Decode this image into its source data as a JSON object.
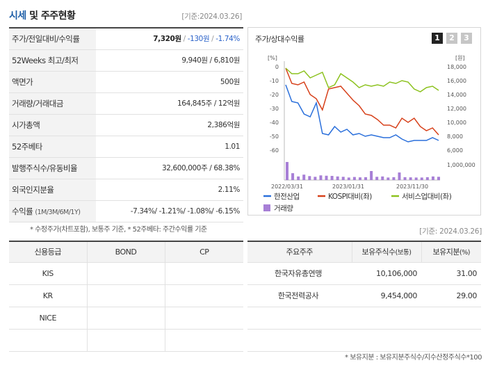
{
  "header": {
    "title_highlight": "시세",
    "title_rest": " 및 주주현황",
    "base_date": "[기준:2024.03.26]"
  },
  "price_table": {
    "rows": [
      {
        "label": "주가/전일대비/수익률",
        "value_main": "7,320원",
        "sep1": " / ",
        "value_change": "-130원",
        "sep2": " / ",
        "value_rate": "-1.74%"
      },
      {
        "label": "52Weeks 최고/최저",
        "value": "9,940원 / 6,810원"
      },
      {
        "label": "액면가",
        "value": "500원"
      },
      {
        "label": "거래량/거래대금",
        "value": "164,845주 / 12억원"
      },
      {
        "label": "시가총액",
        "value": "2,386억원"
      },
      {
        "label": "52주베타",
        "value": "1.01"
      },
      {
        "label": "발행주식수/유동비율",
        "value": "32,600,000주 / 68.38%"
      },
      {
        "label": "외국인지분율",
        "value": "2.11%"
      },
      {
        "label": "수익률",
        "label_small": "(1M/3M/6M/1Y)",
        "value": "-7.34%/ -1.21%/ -1.08%/ -6.15%"
      }
    ],
    "note": "* 수정주가(차트포함), 보통주 기준, * 52주베타: 주간수익률 기준"
  },
  "chart_panel": {
    "title": "주가/상대수익률",
    "tabs": [
      "1",
      "2",
      "3"
    ],
    "active_tab": "1"
  },
  "chart_data": {
    "type": "line",
    "left_axis_unit": "[%]",
    "right_axis_unit": "[원]",
    "left_ticks": [
      "0",
      "-10",
      "-20",
      "-30",
      "-40",
      "-50",
      "-60"
    ],
    "left_tick_values": [
      0,
      -10,
      -20,
      -30,
      -40,
      -50,
      -60
    ],
    "right_ticks": [
      "18,000",
      "16,000",
      "14,000",
      "12,000",
      "10,000",
      "8,000",
      "6,000"
    ],
    "right_tick_values": [
      18000,
      16000,
      14000,
      12000,
      10000,
      8000,
      6000
    ],
    "volume_tick": "1,000,000",
    "x_ticks": [
      "2022/03/31",
      "2023/01/31",
      "2023/11/30"
    ],
    "ylim_left": [
      -60,
      0
    ],
    "series": [
      {
        "name": "한전산업",
        "color": "#2a6fdb",
        "values": [
          -13,
          -25,
          -26,
          -34,
          -36,
          -26,
          -48,
          -49,
          -43,
          -47,
          -45,
          -49,
          -48,
          -50,
          -49,
          -50,
          -51,
          -51,
          -49,
          -52,
          -54,
          -53,
          -53,
          -53,
          -51,
          -53
        ]
      },
      {
        "name": "KOSPI대비(좌)",
        "color": "#d7411b",
        "values": [
          -1,
          -12,
          -13,
          -11,
          -20,
          -23,
          -31,
          -16,
          -15,
          -14,
          -19,
          -24,
          -28,
          -34,
          -35,
          -38,
          -42,
          -42,
          -44,
          -37,
          -40,
          -37,
          -43,
          -46,
          -44,
          -49
        ]
      },
      {
        "name": "서비스업대비(좌)",
        "color": "#8cc21e",
        "values": [
          -1,
          -5,
          -5,
          -3,
          -8,
          -6,
          -4,
          -15,
          -13,
          -5,
          -8,
          -11,
          -15,
          -13,
          -14,
          -13,
          -14,
          -11,
          -12,
          -10,
          -11,
          -16,
          -18,
          -15,
          -14,
          -17
        ]
      }
    ],
    "volume": {
      "name": "거래량",
      "color": "#a77fd6",
      "values": [
        1000000,
        380000,
        200000,
        300000,
        220000,
        180000,
        260000,
        240000,
        230000,
        200000,
        180000,
        140000,
        170000,
        150000,
        160000,
        500000,
        180000,
        200000,
        140000,
        160000,
        420000,
        160000,
        150000,
        140000,
        140000,
        160000,
        200000,
        180000
      ]
    }
  },
  "credit_table": {
    "headers": [
      "신용등급",
      "BOND",
      "CP"
    ],
    "rows": [
      [
        "KIS",
        "",
        ""
      ],
      [
        "KR",
        "",
        ""
      ],
      [
        "NICE",
        "",
        ""
      ],
      [
        "",
        "",
        ""
      ]
    ]
  },
  "holder_table": {
    "base_date": "[기준: 2024.03.26]",
    "headers": [
      "주요주주",
      "보유주식수",
      "(보통)",
      "보유지분",
      "(%)"
    ],
    "rows": [
      {
        "name": "한국자유총연맹",
        "shares": "10,106,000",
        "pct": "31.00"
      },
      {
        "name": "한국전력공사",
        "shares": "9,454,000",
        "pct": "29.00"
      }
    ],
    "note": "* 보유지분 : 보유지분주식수/지수산정주식수*100"
  }
}
